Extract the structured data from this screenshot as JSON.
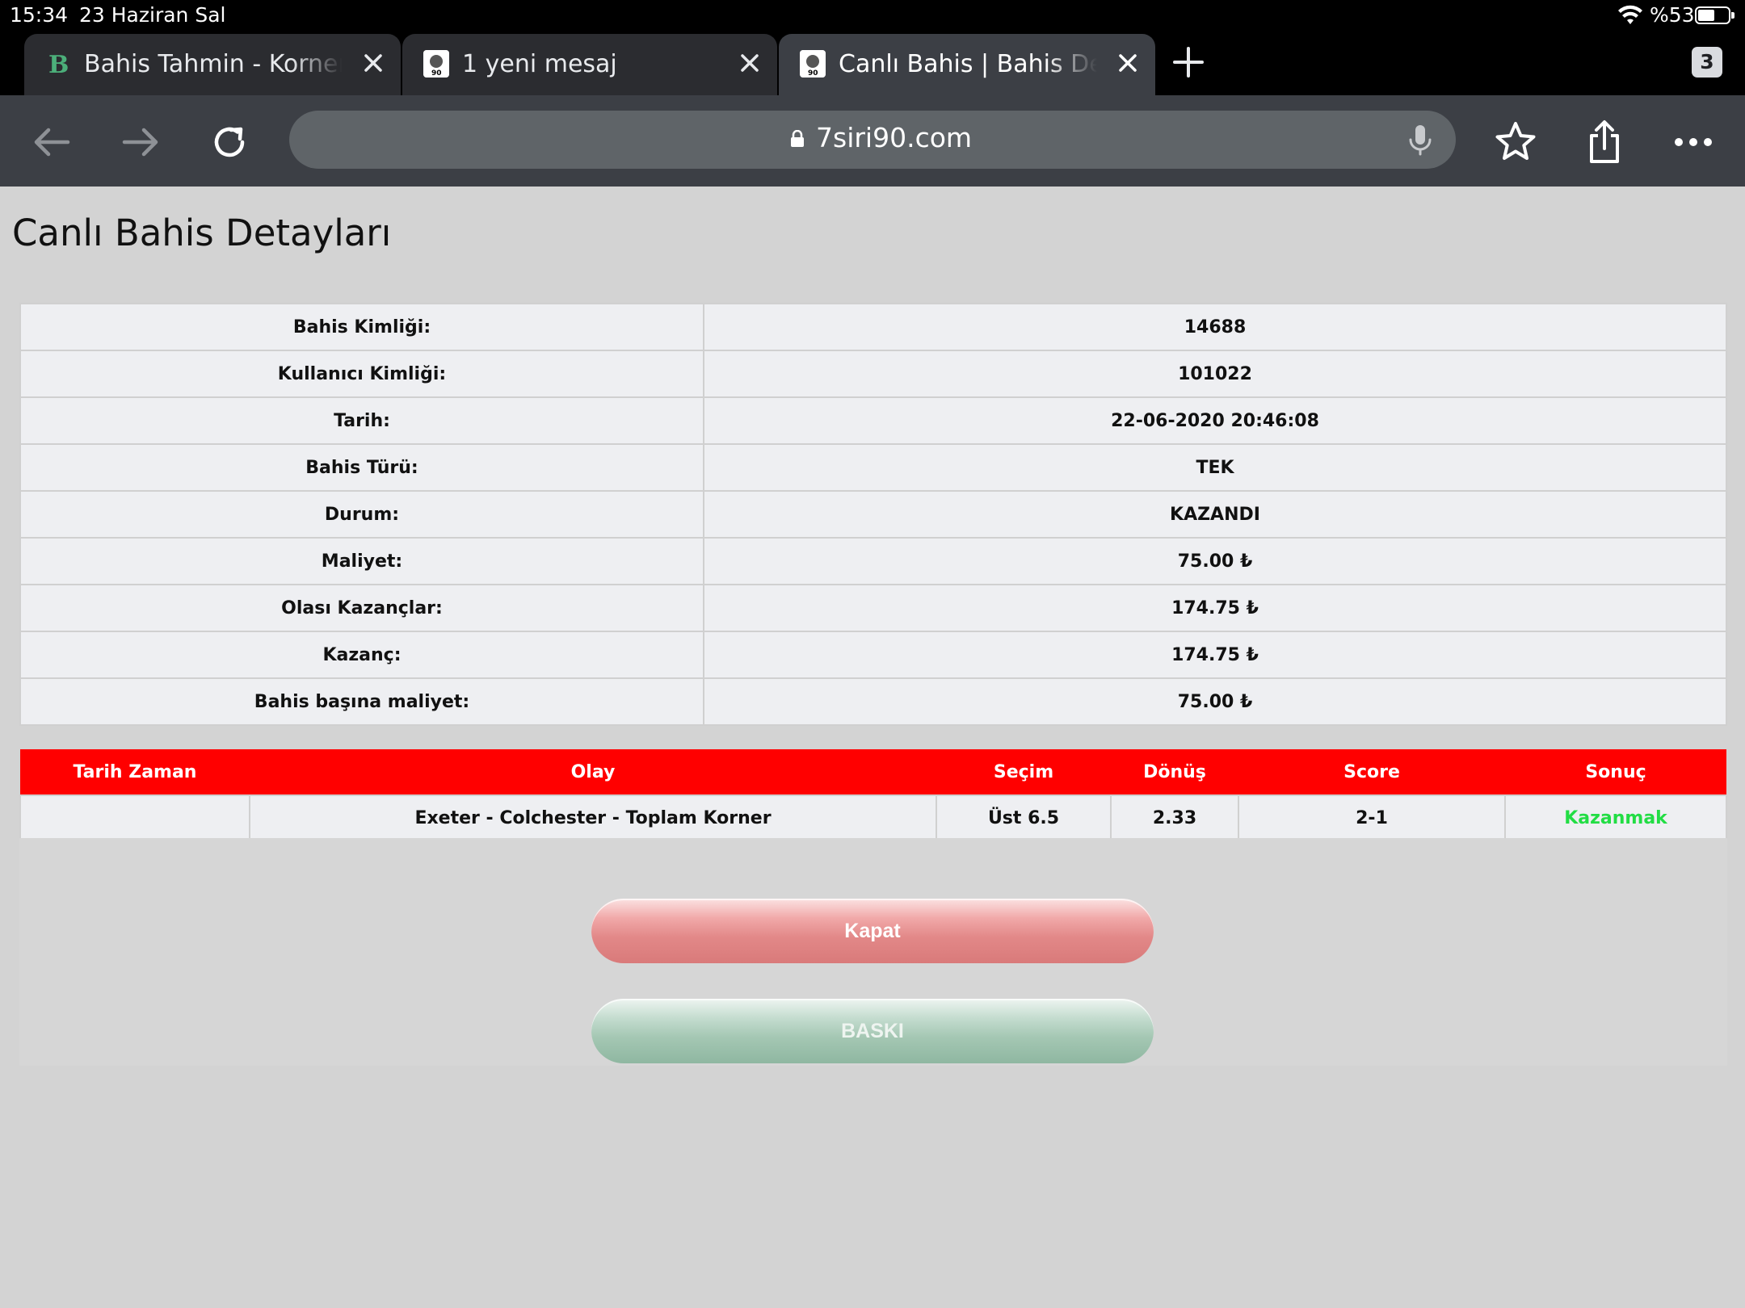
{
  "status_bar": {
    "time": "15:34",
    "date": "23 Haziran Sal",
    "battery": "%53"
  },
  "tabs": [
    {
      "title": "Bahis Tahmin - Korner bahis",
      "favicon": "green-b-icon",
      "active": false
    },
    {
      "title": "1 yeni mesaj",
      "favicon": "site-favicon",
      "active": false
    },
    {
      "title": "Canlı Bahis | Bahis Detayları",
      "favicon": "site-favicon",
      "active": true
    }
  ],
  "tab_count": "3",
  "toolbar": {
    "url": "7siri90.com"
  },
  "page": {
    "title": "Canlı Bahis Detayları",
    "details": [
      {
        "label": "Bahis Kimliği:",
        "value": "14688"
      },
      {
        "label": "Kullanıcı Kimliği:",
        "value": "101022"
      },
      {
        "label": "Tarih:",
        "value": "22-06-2020 20:46:08"
      },
      {
        "label": "Bahis Türü:",
        "value": "TEK"
      },
      {
        "label": "Durum:",
        "value": "KAZANDI"
      },
      {
        "label": "Maliyet:",
        "value": "75.00 ₺"
      },
      {
        "label": "Olası Kazançlar:",
        "value": "174.75 ₺"
      },
      {
        "label": "Kazanç:",
        "value": "174.75 ₺"
      },
      {
        "label": "Bahis başına maliyet:",
        "value": "75.00 ₺"
      }
    ],
    "events": {
      "headers": [
        "Tarih Zaman",
        "Olay",
        "Seçim",
        "Dönüş",
        "Score",
        "Sonuç"
      ],
      "rows": [
        {
          "datetime": "",
          "event": "Exeter - Colchester - Toplam Korner",
          "selection": "Üst 6.5",
          "odds": "2.33",
          "score": "2-1",
          "result": "Kazanmak"
        }
      ]
    },
    "buttons": {
      "close": "Kapat",
      "print": "BASKI"
    }
  },
  "colors": {
    "header_red": "#ff0000",
    "result_green": "#22dd44",
    "close_button": "#e28888",
    "print_button": "#a4c7b3"
  }
}
